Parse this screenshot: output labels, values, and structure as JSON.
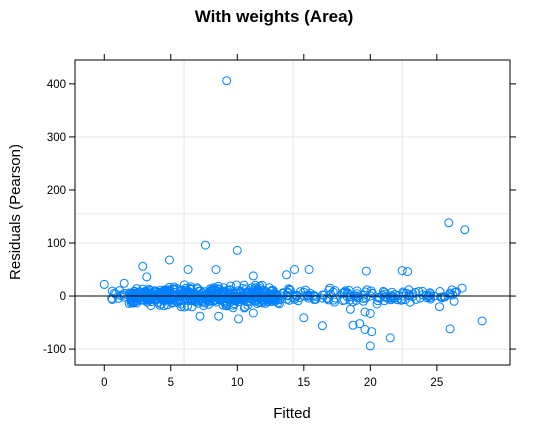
{
  "chart_data": {
    "type": "scatter",
    "title": "With weights (Area)",
    "xlabel": "Fitted",
    "ylabel": "Residuals (Pearson)",
    "xlim": [
      -2.2,
      30.5
    ],
    "ylim": [
      -130,
      445
    ],
    "x_ticks": [
      0,
      5,
      10,
      15,
      20,
      25
    ],
    "y_ticks": [
      -100,
      0,
      100,
      200,
      300,
      400
    ],
    "grid": true,
    "reference_line_y": 0,
    "colors": {
      "points": "#0080ff",
      "grid": "#e6e6e6",
      "axis": "#000000"
    },
    "outliers": [
      {
        "x": 9.2,
        "y": 406
      },
      {
        "x": 25.9,
        "y": 138
      },
      {
        "x": 27.1,
        "y": 125
      },
      {
        "x": 7.6,
        "y": 96
      },
      {
        "x": 10.0,
        "y": 86
      },
      {
        "x": 4.9,
        "y": 68
      },
      {
        "x": 2.9,
        "y": 56
      },
      {
        "x": 6.3,
        "y": 50
      },
      {
        "x": 8.4,
        "y": 50
      },
      {
        "x": 14.3,
        "y": 50
      },
      {
        "x": 15.4,
        "y": 50
      },
      {
        "x": 22.4,
        "y": 48
      },
      {
        "x": 22.8,
        "y": 46
      },
      {
        "x": 19.7,
        "y": 47
      },
      {
        "x": 3.2,
        "y": 36
      },
      {
        "x": 0.0,
        "y": 22
      },
      {
        "x": 1.5,
        "y": 24
      },
      {
        "x": 26.9,
        "y": 15
      },
      {
        "x": 13.7,
        "y": 40
      },
      {
        "x": 11.2,
        "y": 38
      },
      {
        "x": 28.4,
        "y": -47
      },
      {
        "x": 26.0,
        "y": -62
      },
      {
        "x": 20.0,
        "y": -94
      },
      {
        "x": 19.6,
        "y": -63
      },
      {
        "x": 20.1,
        "y": -67
      },
      {
        "x": 21.5,
        "y": -79
      },
      {
        "x": 19.2,
        "y": -52
      },
      {
        "x": 18.7,
        "y": -55
      },
      {
        "x": 16.4,
        "y": -56
      },
      {
        "x": 15.0,
        "y": -41
      },
      {
        "x": 10.1,
        "y": -43
      },
      {
        "x": 18.5,
        "y": -25
      },
      {
        "x": 20.0,
        "y": -33
      },
      {
        "x": 19.6,
        "y": -30
      },
      {
        "x": 7.2,
        "y": -38
      },
      {
        "x": 8.6,
        "y": -38
      },
      {
        "x": 11.2,
        "y": -32
      },
      {
        "x": 25.2,
        "y": -20
      },
      {
        "x": 26.3,
        "y": -10
      },
      {
        "x": 23.2,
        "y": 4
      },
      {
        "x": 24.5,
        "y": -3
      }
    ],
    "bulk": {
      "description": "dense cluster of residuals around zero",
      "x_range": [
        0.5,
        26.5
      ],
      "y_spread": [
        -30,
        30
      ],
      "count": 650
    }
  }
}
